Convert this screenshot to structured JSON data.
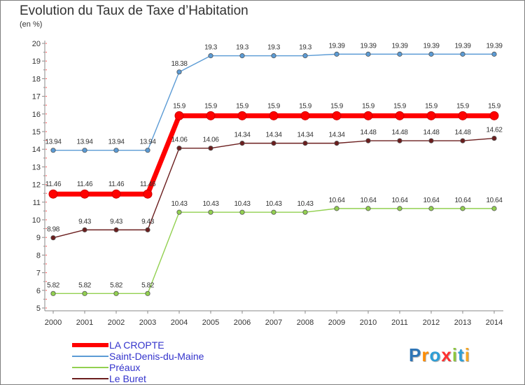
{
  "chart_data": {
    "type": "line",
    "title": "Evolution du Taux de Taxe d’Habitation",
    "ylabel": "(en %)",
    "xlabel": "",
    "categories": [
      "2000",
      "2001",
      "2002",
      "2003",
      "2004",
      "2005",
      "2006",
      "2007",
      "2008",
      "2009",
      "2010",
      "2011",
      "2012",
      "2013",
      "2014"
    ],
    "ylim": [
      5,
      20
    ],
    "yticks": [
      "5",
      "6",
      "7",
      "8",
      "9",
      "10",
      "11",
      "12",
      "13",
      "14",
      "15",
      "16",
      "17",
      "18",
      "19",
      "20"
    ],
    "grid": false,
    "legend_position": "bottom-left",
    "series": [
      {
        "name": "Saint-Denis-du-Maine",
        "color": "#5b9bd5",
        "values": [
          13.94,
          13.94,
          13.94,
          13.94,
          18.38,
          19.3,
          19.3,
          19.3,
          19.3,
          19.39,
          19.39,
          19.39,
          19.39,
          19.39,
          19.39
        ],
        "labels": [
          "13.94",
          "13.94",
          "13.94",
          "13.94",
          "18.38",
          "19.3",
          "19.3",
          "19.3",
          "19.3",
          "19.39",
          "19.39",
          "19.39",
          "19.39",
          "19.39",
          "19.39"
        ]
      },
      {
        "name": "LA CROPTE",
        "color": "#ff0000",
        "values": [
          11.46,
          11.46,
          11.46,
          11.46,
          15.9,
          15.9,
          15.9,
          15.9,
          15.9,
          15.9,
          15.9,
          15.9,
          15.9,
          15.9,
          15.9
        ],
        "labels": [
          "11.46",
          "11.46",
          "11.46",
          "11.46",
          "15.9",
          "15.9",
          "15.9",
          "15.9",
          "15.9",
          "15.9",
          "15.9",
          "15.9",
          "15.9",
          "15.9",
          "15.9"
        ]
      },
      {
        "name": "Le Buret",
        "color": "#6b1e1e",
        "values": [
          8.98,
          9.43,
          9.43,
          9.43,
          14.06,
          14.06,
          14.34,
          14.34,
          14.34,
          14.34,
          14.48,
          14.48,
          14.48,
          14.48,
          14.62
        ],
        "labels": [
          "8.98",
          "9.43",
          "9.43",
          "9.43",
          "14.06",
          "14.06",
          "14.34",
          "14.34",
          "14.34",
          "14.34",
          "14.48",
          "14.48",
          "14.48",
          "14.48",
          "14.62"
        ]
      },
      {
        "name": "Préaux",
        "color": "#92d050",
        "values": [
          5.82,
          5.82,
          5.82,
          5.82,
          10.43,
          10.43,
          10.43,
          10.43,
          10.43,
          10.64,
          10.64,
          10.64,
          10.64,
          10.64,
          10.64
        ],
        "labels": [
          "5.82",
          "5.82",
          "5.82",
          "5.82",
          "10.43",
          "10.43",
          "10.43",
          "10.43",
          "10.43",
          "10.64",
          "10.64",
          "10.64",
          "10.64",
          "10.64",
          "10.64"
        ]
      }
    ]
  },
  "legend": {
    "items": [
      {
        "label": "LA CROPTE",
        "color": "#ff0000"
      },
      {
        "label": "Saint-Denis-du-Maine",
        "color": "#5b9bd5"
      },
      {
        "label": "Préaux",
        "color": "#92d050"
      },
      {
        "label": "Le Buret",
        "color": "#6b1e1e"
      }
    ]
  },
  "logo": {
    "text": "Proxiti",
    "letters": [
      {
        "char": "P",
        "color": "#2e75b6"
      },
      {
        "char": "r",
        "color": "#ff8c00"
      },
      {
        "char": "o",
        "color": "#2e9ed6"
      },
      {
        "char": "x",
        "color": "#ff3030"
      },
      {
        "char": "i",
        "color": "#8dc63f"
      },
      {
        "char": "t",
        "color": "#2e9ed6"
      },
      {
        "char": "i",
        "color": "#f5a623"
      }
    ]
  }
}
